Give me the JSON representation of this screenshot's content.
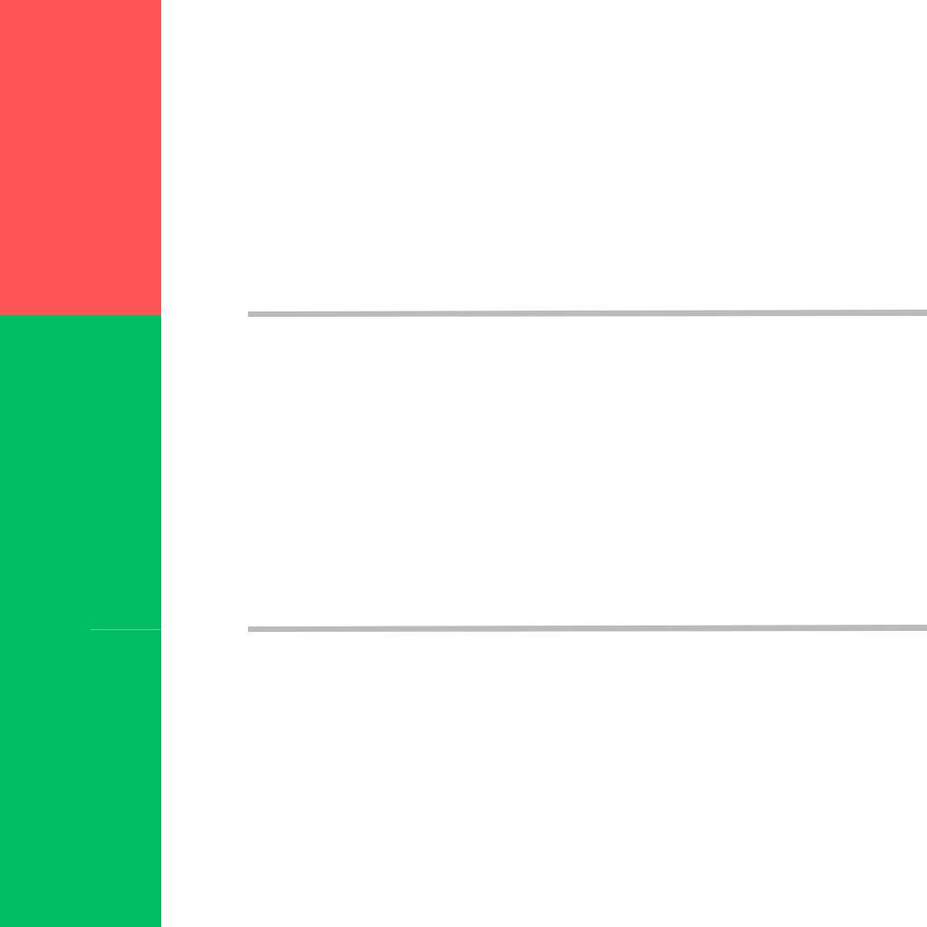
{
  "colors": {
    "background": "#ffffff",
    "red_block": "#ff5555",
    "green_block": "#00bf63",
    "divider": "#bbbbbb"
  },
  "strip": {
    "segments": [
      {
        "name": "red",
        "color": "#ff5555"
      },
      {
        "name": "green",
        "color": "#00bf63"
      },
      {
        "name": "green",
        "color": "#00bf63"
      }
    ]
  },
  "dividers": [
    {
      "color": "#bbbbbb"
    },
    {
      "color": "#bbbbbb"
    }
  ]
}
